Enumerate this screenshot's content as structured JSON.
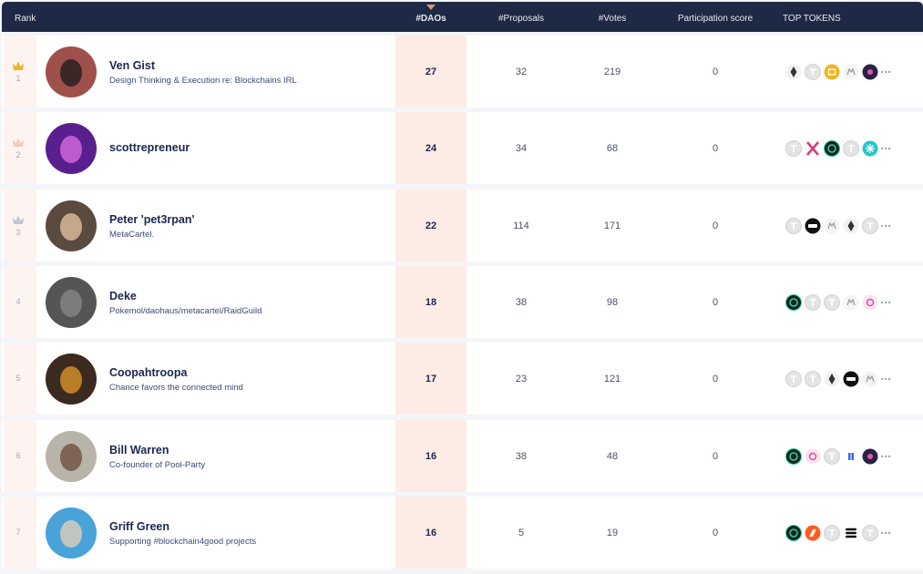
{
  "header": {
    "rank": "Rank",
    "daos": "#DAOs",
    "proposals": "#Proposals",
    "votes": "#Votes",
    "participation": "Participation score",
    "tokens": "TOP TOKENS"
  },
  "rows": [
    {
      "rank": "1",
      "name": "Ven Gist",
      "description": "Design Thinking & Execution re: Blockchains IRL",
      "daos": "27",
      "proposals": "32",
      "votes": "219",
      "participation": "0"
    },
    {
      "rank": "2",
      "name": "scottrepreneur",
      "daos": "24",
      "proposals": "34",
      "votes": "68",
      "participation": "0"
    },
    {
      "rank": "3",
      "name": "Peter 'pet3rpan'",
      "description": "MetaCartel.",
      "daos": "22",
      "proposals": "114",
      "votes": "171",
      "participation": "0"
    },
    {
      "rank": "4",
      "name": "Deke",
      "description": "Pokemol/daohaus/metacartel/RaidGuild",
      "daos": "18",
      "proposals": "38",
      "votes": "98",
      "participation": "0"
    },
    {
      "rank": "5",
      "name": "Coopahtroopa",
      "description": "Chance favors the connected mind",
      "daos": "17",
      "proposals": "23",
      "votes": "121",
      "participation": "0"
    },
    {
      "rank": "6",
      "name": "Bill Warren",
      "description": "Co-founder of Pool-Party",
      "daos": "16",
      "proposals": "38",
      "votes": "48",
      "participation": "0"
    },
    {
      "rank": "7",
      "name": "Griff Green",
      "description": "Supporting #blockchain4good projects",
      "daos": "16",
      "proposals": "5",
      "votes": "19",
      "participation": "0"
    }
  ]
}
